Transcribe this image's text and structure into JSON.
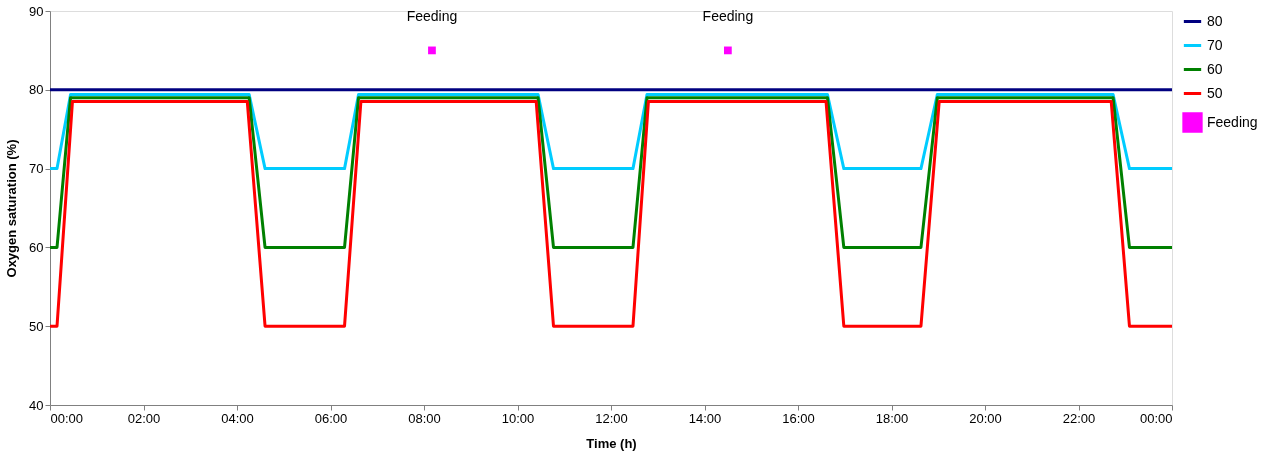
{
  "chart_data": {
    "type": "line",
    "xlabel": "Time (h)",
    "ylabel": "Oxygen saturation (%)",
    "xlim": [
      0,
      24
    ],
    "ylim": [
      40,
      90
    ],
    "xticks": [
      {
        "value": 0,
        "label": "00:00"
      },
      {
        "value": 2,
        "label": "02:00"
      },
      {
        "value": 4,
        "label": "04:00"
      },
      {
        "value": 6,
        "label": "06:00"
      },
      {
        "value": 8,
        "label": "08:00"
      },
      {
        "value": 10,
        "label": "10:00"
      },
      {
        "value": 12,
        "label": "12:00"
      },
      {
        "value": 14,
        "label": "14:00"
      },
      {
        "value": 16,
        "label": "16:00"
      },
      {
        "value": 18,
        "label": "18:00"
      },
      {
        "value": 20,
        "label": "20:00"
      },
      {
        "value": 22,
        "label": "22:00"
      },
      {
        "value": 24,
        "label": "00:00"
      }
    ],
    "yticks": [
      40,
      50,
      60,
      70,
      80,
      90
    ],
    "grid": false,
    "legend": "right",
    "line_style": "solid",
    "series": [
      {
        "name": "80",
        "color": "#000080",
        "x": [
          0,
          24
        ],
        "values": [
          80,
          80
        ]
      },
      {
        "name": "70",
        "color": "#00ccff",
        "x": [
          0,
          0.15,
          0.44,
          4.26,
          4.6,
          6.3,
          6.6,
          10.44,
          10.77,
          12.47,
          12.77,
          16.63,
          16.98,
          18.63,
          18.98,
          22.74,
          23.09,
          24
        ],
        "values": [
          70,
          70,
          79.4,
          79.4,
          70,
          70,
          79.4,
          79.4,
          70,
          70,
          79.4,
          79.4,
          70,
          70,
          79.4,
          79.4,
          70,
          70
        ]
      },
      {
        "name": "60",
        "color": "#008000",
        "x": [
          0,
          0.15,
          0.44,
          4.26,
          4.6,
          6.3,
          6.6,
          10.44,
          10.77,
          12.47,
          12.77,
          16.63,
          16.98,
          18.63,
          18.98,
          22.74,
          23.09,
          24
        ],
        "values": [
          60,
          60,
          79,
          79,
          60,
          60,
          79,
          79,
          60,
          60,
          79,
          79,
          60,
          60,
          79,
          79,
          60,
          60
        ]
      },
      {
        "name": "50",
        "color": "#ff0000",
        "x": [
          0,
          0.15,
          0.48,
          4.22,
          4.6,
          6.3,
          6.65,
          10.4,
          10.77,
          12.47,
          12.8,
          16.6,
          16.98,
          18.63,
          19.02,
          22.7,
          23.09,
          24
        ],
        "values": [
          50,
          50,
          78.5,
          78.5,
          50,
          50,
          78.5,
          78.5,
          50,
          50,
          78.5,
          78.5,
          50,
          50,
          78.5,
          78.5,
          50,
          50
        ]
      },
      {
        "name": "Feeding",
        "type": "scatter",
        "marker": "square",
        "color": "#ff00ff",
        "x": [
          8.17,
          14.5
        ],
        "values": [
          85,
          85
        ]
      }
    ],
    "annotations": [
      {
        "text": "Feeding",
        "x": 8.17,
        "y": 85
      },
      {
        "text": "Feeding",
        "x": 14.5,
        "y": 85
      }
    ]
  }
}
